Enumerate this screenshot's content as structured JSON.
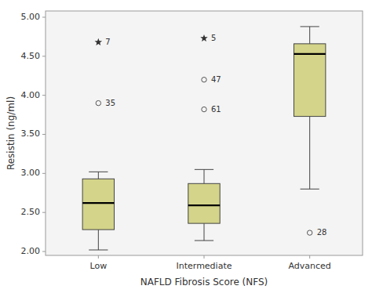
{
  "chart_data": {
    "type": "box",
    "xlabel": "NAFLD Fibrosis Score (NFS)",
    "ylabel": "Resistin (ng/ml)",
    "categories": [
      "Low",
      "Intermediate",
      "Advanced"
    ],
    "color": "#d4d48a",
    "grid": false,
    "ylim": [
      1.95,
      5.08
    ],
    "yticks": [
      {
        "value": 2.0,
        "label": "2.00"
      },
      {
        "value": 2.5,
        "label": "2.50"
      },
      {
        "value": 3.0,
        "label": "3.00"
      },
      {
        "value": 3.5,
        "label": "3.50"
      },
      {
        "value": 4.0,
        "label": "4.00"
      },
      {
        "value": 4.5,
        "label": "4.50"
      },
      {
        "value": 5.0,
        "label": "5.00"
      }
    ],
    "boxes": [
      {
        "q1": 2.28,
        "median": 2.62,
        "q3": 2.93,
        "whisker_low": 2.02,
        "whisker_high": 3.02,
        "outliers": [
          {
            "value": 3.9,
            "label": "35",
            "marker": "circle"
          },
          {
            "value": 4.68,
            "label": "7",
            "marker": "star"
          }
        ]
      },
      {
        "q1": 2.36,
        "median": 2.59,
        "q3": 2.87,
        "whisker_low": 2.14,
        "whisker_high": 3.05,
        "outliers": [
          {
            "value": 3.82,
            "label": "61",
            "marker": "circle"
          },
          {
            "value": 4.2,
            "label": "47",
            "marker": "circle"
          },
          {
            "value": 4.73,
            "label": "5",
            "marker": "star"
          }
        ]
      },
      {
        "q1": 3.73,
        "median": 4.53,
        "q3": 4.66,
        "whisker_low": 2.8,
        "whisker_high": 4.88,
        "outliers": [
          {
            "value": 2.24,
            "label": "28",
            "marker": "circle"
          }
        ]
      }
    ]
  }
}
